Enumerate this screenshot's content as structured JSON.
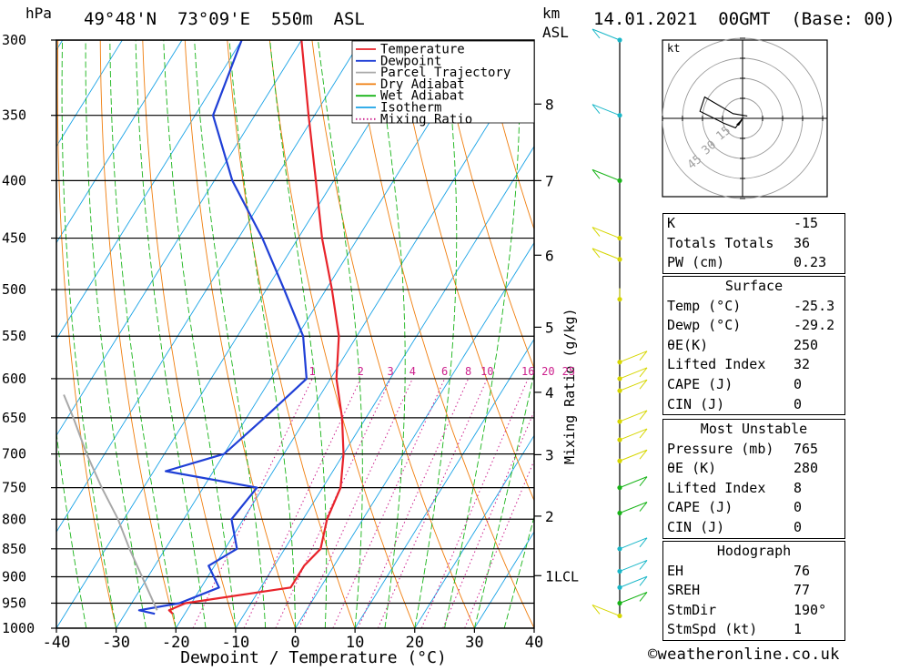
{
  "header": {
    "pressure_unit": "hPa",
    "location": "49°48'N  73°09'E  550m  ASL",
    "km_label": "km",
    "asl_label": "ASL",
    "datetime": "14.01.2021  00GMT  (Base: 00)"
  },
  "chart_data": {
    "type": "skew-t log-p",
    "xlabel": "Dewpoint / Temperature (°C)",
    "ylabel": "hPa",
    "right_label": "Mixing Ratio (g/kg)",
    "xlim": [
      -40,
      40
    ],
    "ylim": [
      1000,
      300
    ],
    "x_ticks": [
      -40,
      -30,
      -20,
      -10,
      0,
      10,
      20,
      30,
      40
    ],
    "pressure_ticks": [
      300,
      350,
      400,
      450,
      500,
      550,
      600,
      650,
      700,
      750,
      800,
      850,
      900,
      950,
      1000
    ],
    "height_ticks_km": [
      {
        "label": "8",
        "p": 342
      },
      {
        "label": "7",
        "p": 400
      },
      {
        "label": "6",
        "p": 466
      },
      {
        "label": "5",
        "p": 540
      },
      {
        "label": "4",
        "p": 617
      },
      {
        "label": "3",
        "p": 701
      },
      {
        "label": "2",
        "p": 795
      },
      {
        "label": "1",
        "p": 898
      }
    ],
    "lcl": {
      "label": "1LCL",
      "p": 898
    },
    "mixing_ratio_labels": [
      "1",
      "2",
      "3",
      "4",
      "6",
      "8",
      "10",
      "16",
      "20",
      "25"
    ],
    "legend": [
      {
        "name": "Temperature",
        "color": "#e8232a",
        "style": "solid"
      },
      {
        "name": "Dewpoint",
        "color": "#1f3fd6",
        "style": "solid"
      },
      {
        "name": "Parcel Trajectory",
        "color": "#a8a8a8",
        "style": "solid"
      },
      {
        "name": "Dry Adiabat",
        "color": "#f07d0c",
        "style": "solid"
      },
      {
        "name": "Wet Adiabat",
        "color": "#18b418",
        "style": "solid"
      },
      {
        "name": "Isotherm",
        "color": "#1aa3e6",
        "style": "solid"
      },
      {
        "name": "Mixing Ratio",
        "color": "#cc1f8c",
        "style": "dotted"
      }
    ],
    "series": [
      {
        "name": "Temperature",
        "color": "#e8232a",
        "points": [
          {
            "p": 971,
            "t": -22
          },
          {
            "p": 964,
            "t": -23
          },
          {
            "p": 950,
            "t": -21
          },
          {
            "p": 920,
            "t": -5
          },
          {
            "p": 880,
            "t": -5
          },
          {
            "p": 850,
            "t": -4
          },
          {
            "p": 800,
            "t": -6
          },
          {
            "p": 750,
            "t": -7
          },
          {
            "p": 700,
            "t": -10
          },
          {
            "p": 650,
            "t": -14
          },
          {
            "p": 600,
            "t": -19
          },
          {
            "p": 550,
            "t": -23
          },
          {
            "p": 500,
            "t": -29
          },
          {
            "p": 450,
            "t": -36
          },
          {
            "p": 400,
            "t": -43
          },
          {
            "p": 350,
            "t": -51
          },
          {
            "p": 300,
            "t": -60
          }
        ]
      },
      {
        "name": "Dewpoint",
        "color": "#1f3fd6",
        "points": [
          {
            "p": 971,
            "t": -25
          },
          {
            "p": 964,
            "t": -28
          },
          {
            "p": 950,
            "t": -22
          },
          {
            "p": 920,
            "t": -17
          },
          {
            "p": 880,
            "t": -21
          },
          {
            "p": 850,
            "t": -18
          },
          {
            "p": 800,
            "t": -22
          },
          {
            "p": 750,
            "t": -21
          },
          {
            "p": 725,
            "t": -38
          },
          {
            "p": 700,
            "t": -30
          },
          {
            "p": 650,
            "t": -27
          },
          {
            "p": 600,
            "t": -24
          },
          {
            "p": 550,
            "t": -29
          },
          {
            "p": 500,
            "t": -37
          },
          {
            "p": 450,
            "t": -46
          },
          {
            "p": 400,
            "t": -57
          },
          {
            "p": 350,
            "t": -67
          },
          {
            "p": 300,
            "t": -70
          }
        ]
      },
      {
        "name": "Parcel Trajectory",
        "color": "#a8a8a8",
        "points": [
          {
            "p": 964,
            "t": -25
          },
          {
            "p": 900,
            "t": -31
          },
          {
            "p": 850,
            "t": -36
          },
          {
            "p": 800,
            "t": -41
          },
          {
            "p": 750,
            "t": -47
          },
          {
            "p": 700,
            "t": -53
          },
          {
            "p": 650,
            "t": -59
          },
          {
            "p": 620,
            "t": -63
          }
        ]
      }
    ],
    "wind_barbs_hint": "wind profile drawn as barbs along right staff"
  },
  "hodograph": {
    "unit": "kt",
    "ring_labels": [
      "15",
      "30",
      "45"
    ],
    "points": [
      [
        0,
        0
      ],
      [
        -3,
        -4
      ],
      [
        -8,
        -2
      ],
      [
        -18,
        3
      ],
      [
        -16,
        9
      ],
      [
        -4,
        2
      ],
      [
        2,
        1
      ]
    ]
  },
  "indices": {
    "top": [
      {
        "label": "K",
        "value": "-15"
      },
      {
        "label": "Totals Totals",
        "value": "36"
      },
      {
        "label": "PW (cm)",
        "value": "0.23"
      }
    ],
    "surface": {
      "title": "Surface",
      "rows": [
        {
          "label": "Temp (°C)",
          "value": "-25.3"
        },
        {
          "label": "Dewp (°C)",
          "value": "-29.2"
        },
        {
          "label": "θE(K)",
          "value": "250"
        },
        {
          "label": "Lifted Index",
          "value": "32"
        },
        {
          "label": "CAPE (J)",
          "value": "0"
        },
        {
          "label": "CIN (J)",
          "value": "0"
        }
      ]
    },
    "most_unstable": {
      "title": "Most Unstable",
      "rows": [
        {
          "label": "Pressure (mb)",
          "value": "765"
        },
        {
          "label": "θE (K)",
          "value": "280"
        },
        {
          "label": "Lifted Index",
          "value": "8"
        },
        {
          "label": "CAPE (J)",
          "value": "0"
        },
        {
          "label": "CIN (J)",
          "value": "0"
        }
      ]
    },
    "hodograph": {
      "title": "Hodograph",
      "rows": [
        {
          "label": "EH",
          "value": "76"
        },
        {
          "label": "SREH",
          "value": "77"
        },
        {
          "label": "StmDir",
          "value": "190°"
        },
        {
          "label": "StmSpd (kt)",
          "value": "1"
        }
      ]
    }
  },
  "footer": {
    "credit": "©weatheronline.co.uk"
  },
  "colors": {
    "temperature": "#e8232a",
    "dewpoint": "#1f3fd6",
    "parcel": "#a8a8a8",
    "dry_adiabat": "#f07d0c",
    "wet_adiabat": "#18b418",
    "isotherm": "#1aa3e6",
    "mixing_ratio": "#cc1f8c",
    "barb_low": "#18b418",
    "barb_mid": "#d6d600",
    "barb_high": "#19b7c8"
  }
}
